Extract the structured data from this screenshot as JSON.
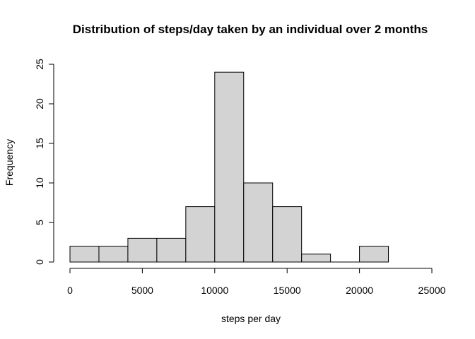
{
  "chart_data": {
    "type": "bar",
    "title": "Distribution of steps/day taken by an individual over 2 months",
    "xlabel": "steps per day",
    "ylabel": "Frequency",
    "xlim": [
      0,
      25000
    ],
    "ylim": [
      0,
      25
    ],
    "x_ticks": [
      0,
      5000,
      10000,
      15000,
      20000,
      25000
    ],
    "y_ticks": [
      0,
      5,
      10,
      15,
      20,
      25
    ],
    "bins": [
      {
        "start": 0,
        "end": 2000,
        "value": 2
      },
      {
        "start": 2000,
        "end": 4000,
        "value": 2
      },
      {
        "start": 4000,
        "end": 6000,
        "value": 3
      },
      {
        "start": 6000,
        "end": 8000,
        "value": 3
      },
      {
        "start": 8000,
        "end": 10000,
        "value": 7
      },
      {
        "start": 10000,
        "end": 12000,
        "value": 24
      },
      {
        "start": 12000,
        "end": 14000,
        "value": 10
      },
      {
        "start": 14000,
        "end": 16000,
        "value": 7
      },
      {
        "start": 16000,
        "end": 18000,
        "value": 1
      },
      {
        "start": 18000,
        "end": 20000,
        "value": 0
      },
      {
        "start": 20000,
        "end": 22000,
        "value": 2
      }
    ],
    "bar_fill": "#d3d3d3",
    "bar_stroke": "#000000",
    "grid": false,
    "legend": "none"
  }
}
